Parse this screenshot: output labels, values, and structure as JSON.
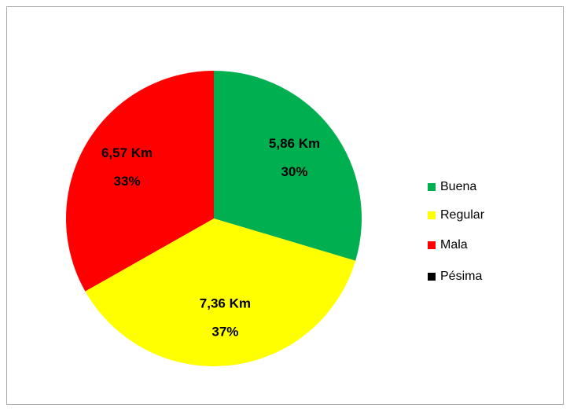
{
  "chart_data": {
    "type": "pie",
    "categories": [
      "Buena",
      "Regular",
      "Mala",
      "Pésima"
    ],
    "values": [
      5.86,
      7.36,
      6.57,
      0
    ],
    "value_labels": [
      "5,86 Km",
      "7,36 Km",
      "6,57 Km",
      null
    ],
    "percentages": [
      30,
      37,
      33,
      0
    ],
    "percentage_labels": [
      "30%",
      "37%",
      "33%",
      null
    ],
    "colors": [
      "#00b050",
      "#ffff00",
      "#ff0000",
      "#000000"
    ],
    "legend": "right"
  }
}
